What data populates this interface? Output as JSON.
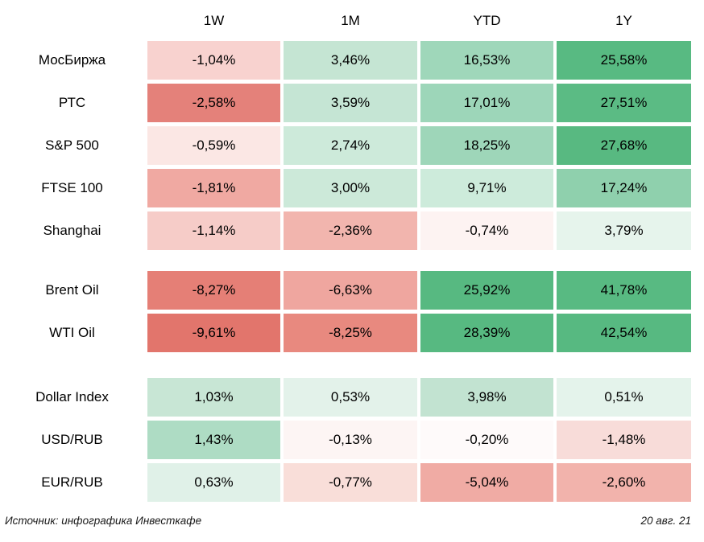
{
  "chart_data": {
    "type": "heatmap",
    "title": "",
    "columns": [
      "1W",
      "1M",
      "YTD",
      "1Y"
    ],
    "color_scale": {
      "negative": "#e2756c",
      "neutral": "#ffffff",
      "positive": "#57b981"
    },
    "rows": [
      {
        "label": "МосБиржа",
        "group": "markets",
        "cells": [
          {
            "value": -1.04,
            "label": "-1,04%",
            "color": "#f8d2cf"
          },
          {
            "value": 3.46,
            "label": "3,46%",
            "color": "#c5e5d3"
          },
          {
            "value": 16.53,
            "label": "16,53%",
            "color": "#9fd7ba"
          },
          {
            "value": 25.58,
            "label": "25,58%",
            "color": "#58ba82"
          }
        ]
      },
      {
        "label": "РТС",
        "group": "markets",
        "cells": [
          {
            "value": -2.58,
            "label": "-2,58%",
            "color": "#e4817a"
          },
          {
            "value": 3.59,
            "label": "3,59%",
            "color": "#c5e5d4"
          },
          {
            "value": 17.01,
            "label": "17,01%",
            "color": "#9dd6b9"
          },
          {
            "value": 27.51,
            "label": "27,51%",
            "color": "#5bbb84"
          }
        ]
      },
      {
        "label": "S&P 500",
        "group": "markets",
        "cells": [
          {
            "value": -0.59,
            "label": "-0,59%",
            "color": "#fbe7e4"
          },
          {
            "value": 2.74,
            "label": "2,74%",
            "color": "#cdeada"
          },
          {
            "value": 18.25,
            "label": "18,25%",
            "color": "#9ed6b9"
          },
          {
            "value": 27.68,
            "label": "27,68%",
            "color": "#58b981"
          }
        ]
      },
      {
        "label": "FTSE 100",
        "group": "markets",
        "cells": [
          {
            "value": -1.81,
            "label": "-1,81%",
            "color": "#f0a9a2"
          },
          {
            "value": 3.0,
            "label": "3,00%",
            "color": "#cce9d9"
          },
          {
            "value": 9.71,
            "label": "9,71%",
            "color": "#cdebdb"
          },
          {
            "value": 17.24,
            "label": "17,24%",
            "color": "#8fd0ad"
          }
        ]
      },
      {
        "label": "Shanghai",
        "group": "markets",
        "cells": [
          {
            "value": -1.14,
            "label": "-1,14%",
            "color": "#f6ccc8"
          },
          {
            "value": -2.36,
            "label": "-2,36%",
            "color": "#f2b5ae"
          },
          {
            "value": -0.74,
            "label": "-0,74%",
            "color": "#fdf3f2"
          },
          {
            "value": 3.79,
            "label": "3,79%",
            "color": "#e6f4ec"
          }
        ]
      },
      {
        "label": "Brent Oil",
        "group": "commodities",
        "cells": [
          {
            "value": -8.27,
            "label": "-8,27%",
            "color": "#e57f76"
          },
          {
            "value": -6.63,
            "label": "-6,63%",
            "color": "#efa69f"
          },
          {
            "value": 25.92,
            "label": "25,92%",
            "color": "#57b981"
          },
          {
            "value": 41.78,
            "label": "41,78%",
            "color": "#58ba82"
          }
        ]
      },
      {
        "label": "WTI Oil",
        "group": "commodities",
        "cells": [
          {
            "value": -9.61,
            "label": "-9,61%",
            "color": "#e2756c"
          },
          {
            "value": -8.25,
            "label": "-8,25%",
            "color": "#e8897f"
          },
          {
            "value": 28.39,
            "label": "28,39%",
            "color": "#57b981"
          },
          {
            "value": 42.54,
            "label": "42,54%",
            "color": "#57b981"
          }
        ]
      },
      {
        "label": "Dollar Index",
        "group": "currencies",
        "cells": [
          {
            "value": 1.03,
            "label": "1,03%",
            "color": "#c8e6d5"
          },
          {
            "value": 0.53,
            "label": "0,53%",
            "color": "#e3f2ea"
          },
          {
            "value": 3.98,
            "label": "3,98%",
            "color": "#c2e3d1"
          },
          {
            "value": 0.51,
            "label": "0,51%",
            "color": "#e4f3eb"
          }
        ]
      },
      {
        "label": "USD/RUB",
        "group": "currencies",
        "cells": [
          {
            "value": 1.43,
            "label": "1,43%",
            "color": "#aedcc4"
          },
          {
            "value": -0.13,
            "label": "-0,13%",
            "color": "#fdf5f4"
          },
          {
            "value": -0.2,
            "label": "-0,20%",
            "color": "#fefafa"
          },
          {
            "value": -1.48,
            "label": "-1,48%",
            "color": "#f8dcd9"
          }
        ]
      },
      {
        "label": "EUR/RUB",
        "group": "currencies",
        "cells": [
          {
            "value": 0.63,
            "label": "0,63%",
            "color": "#e0f1e8"
          },
          {
            "value": -0.77,
            "label": "-0,77%",
            "color": "#f9ded9"
          },
          {
            "value": -5.04,
            "label": "-5,04%",
            "color": "#f0aba4"
          },
          {
            "value": -2.6,
            "label": "-2,60%",
            "color": "#f2b3ac"
          }
        ]
      }
    ]
  },
  "footer": {
    "source_label": "Источник: инфографика Инвесткафе",
    "date_label": "20 авг. 21"
  }
}
